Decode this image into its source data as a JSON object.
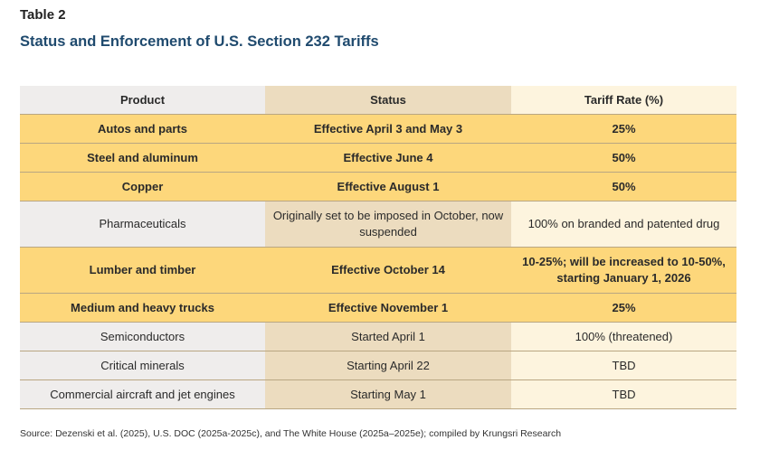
{
  "label": "Table 2",
  "title": "Status and Enforcement of U.S. Section 232 Tariffs",
  "columns": [
    "Product",
    "Status",
    "Tariff Rate (%)"
  ],
  "rows": [
    {
      "product": "Autos and parts",
      "status": "Effective April 3 and May 3",
      "rate": "25%",
      "highlight": true
    },
    {
      "product": "Steel and aluminum",
      "status": "Effective June 4",
      "rate": "50%",
      "highlight": true
    },
    {
      "product": "Copper",
      "status": "Effective August 1",
      "rate": "50%",
      "highlight": true
    },
    {
      "product": "Pharmaceuticals",
      "status": "Originally set to be imposed in October, now suspended",
      "rate": "100% on branded and patented drug",
      "highlight": false
    },
    {
      "product": "Lumber and timber",
      "status": "Effective October 14",
      "rate": "10-25%; will be increased to 10-50%, starting January 1, 2026",
      "highlight": true
    },
    {
      "product": "Medium and heavy trucks",
      "status": "Effective November 1",
      "rate": "25%",
      "highlight": true
    },
    {
      "product": "Semiconductors",
      "status": "Started April 1",
      "rate": "100% (threatened)",
      "highlight": false
    },
    {
      "product": "Critical minerals",
      "status": "Starting April 22",
      "rate": "TBD",
      "highlight": false
    },
    {
      "product": "Commercial aircraft and jet engines",
      "status": "Starting May 1",
      "rate": "TBD",
      "highlight": false
    }
  ],
  "source": "Source: Dezenski et al. (2025), U.S. DOC (2025a-2025c), and The White House (2025a–2025e); compiled by Krungsri Research",
  "colors": {
    "highlight": "#fdd77b",
    "title": "#1f4a6e",
    "product_col": "#efedec",
    "status_col": "#ecdcbf",
    "rate_col": "#fdf4de"
  }
}
